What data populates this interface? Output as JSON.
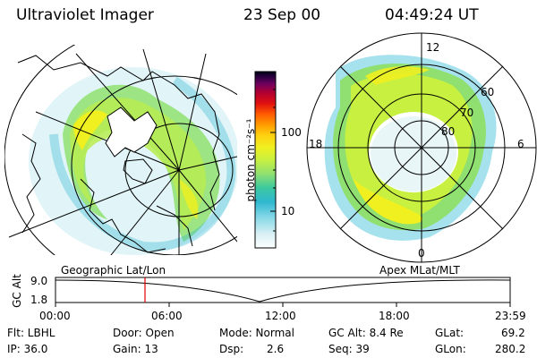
{
  "header": {
    "instrument": "Ultraviolet Imager",
    "date": "23 Sep 00",
    "time": "04:49:24 UT"
  },
  "colorbar": {
    "unit_label": "photon cm⁻²s⁻¹",
    "tick_100": "100",
    "tick_10": "10",
    "colors": [
      "#ffffff",
      "#d8f0f4",
      "#7fd6e6",
      "#2fb8d0",
      "#3cc8a0",
      "#8fe070",
      "#c8f040",
      "#f0f020",
      "#ffd010",
      "#ff9a00",
      "#ff5a00",
      "#e01010",
      "#b00030",
      "#700060",
      "#2a0040",
      "#000018"
    ]
  },
  "left_map": {
    "caption": "Geographic Lat/Lon"
  },
  "right_map": {
    "caption": "Apex MLat/MLT",
    "mlt_labels": {
      "top": "12",
      "right": "6",
      "bottom": "0",
      "left": "18"
    },
    "lat_labels": [
      "60",
      "70",
      "80"
    ]
  },
  "altitude_plot": {
    "ylabel": "GC Alt",
    "yticks": [
      "9.0",
      "1.8"
    ],
    "xticks": [
      "00:00",
      "06:00",
      "12:00",
      "18:00",
      "23:59"
    ],
    "marker_color": "#e00000"
  },
  "info": {
    "flt": "Flt: LBHL",
    "ip": "IP: 36.0",
    "door": "Door: Open",
    "gain": "Gain: 13",
    "mode": "Mode: Normal",
    "dsp_label": "Dsp:",
    "dsp_value": "2.6",
    "gc_alt": "GC Alt: 8.4 Re",
    "seq": "Seq: 39",
    "glat_label": "GLat:",
    "glat_value": "69.2",
    "glon_label": "GLon:",
    "glon_value": "280.2"
  }
}
